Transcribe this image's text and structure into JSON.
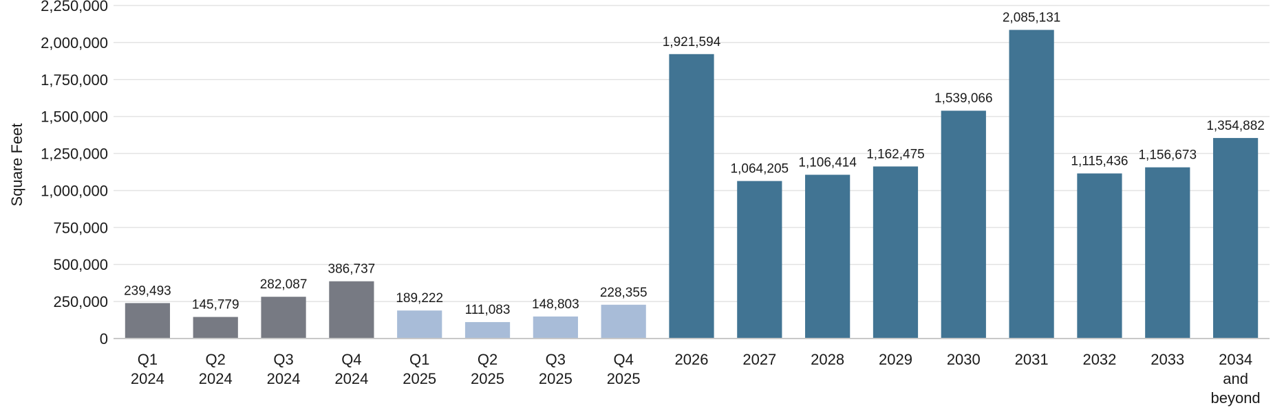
{
  "chart_data": {
    "type": "bar",
    "ylabel": "Square Feet",
    "ylim": [
      0,
      2250000
    ],
    "yticks": [
      0,
      250000,
      500000,
      750000,
      1000000,
      1250000,
      1500000,
      1750000,
      2000000,
      2250000
    ],
    "ytick_labels": [
      "0",
      "250,000",
      "500,000",
      "750,000",
      "1,000,000",
      "1,250,000",
      "1,500,000",
      "1,750,000",
      "2,000,000",
      "2,250,000"
    ],
    "grid": true,
    "categories": [
      [
        "Q1",
        "2024"
      ],
      [
        "Q2",
        "2024"
      ],
      [
        "Q3",
        "2024"
      ],
      [
        "Q4",
        "2024"
      ],
      [
        "Q1",
        "2025"
      ],
      [
        "Q2",
        "2025"
      ],
      [
        "Q3",
        "2025"
      ],
      [
        "Q4",
        "2025"
      ],
      [
        "2026"
      ],
      [
        "2027"
      ],
      [
        "2028"
      ],
      [
        "2029"
      ],
      [
        "2030"
      ],
      [
        "2031"
      ],
      [
        "2032"
      ],
      [
        "2033"
      ],
      [
        "2034",
        "and",
        "beyond"
      ]
    ],
    "values": [
      239493,
      145779,
      282087,
      386737,
      189222,
      111083,
      148803,
      228355,
      1921594,
      1064205,
      1106414,
      1162475,
      1539066,
      2085131,
      1115436,
      1156673,
      1354882
    ],
    "value_labels": [
      "239,493",
      "145,779",
      "282,087",
      "386,737",
      "189,222",
      "111,083",
      "148,803",
      "228,355",
      "1,921,594",
      "1,064,205",
      "1,106,414",
      "1,162,475",
      "1,539,066",
      "2,085,131",
      "1,115,436",
      "1,156,673",
      "1,354,882"
    ],
    "bar_colors": [
      "#777a83",
      "#777a83",
      "#777a83",
      "#777a83",
      "#a8bcd8",
      "#a8bcd8",
      "#a8bcd8",
      "#a8bcd8",
      "#417493",
      "#417493",
      "#417493",
      "#417493",
      "#417493",
      "#417493",
      "#417493",
      "#417493",
      "#417493"
    ]
  }
}
